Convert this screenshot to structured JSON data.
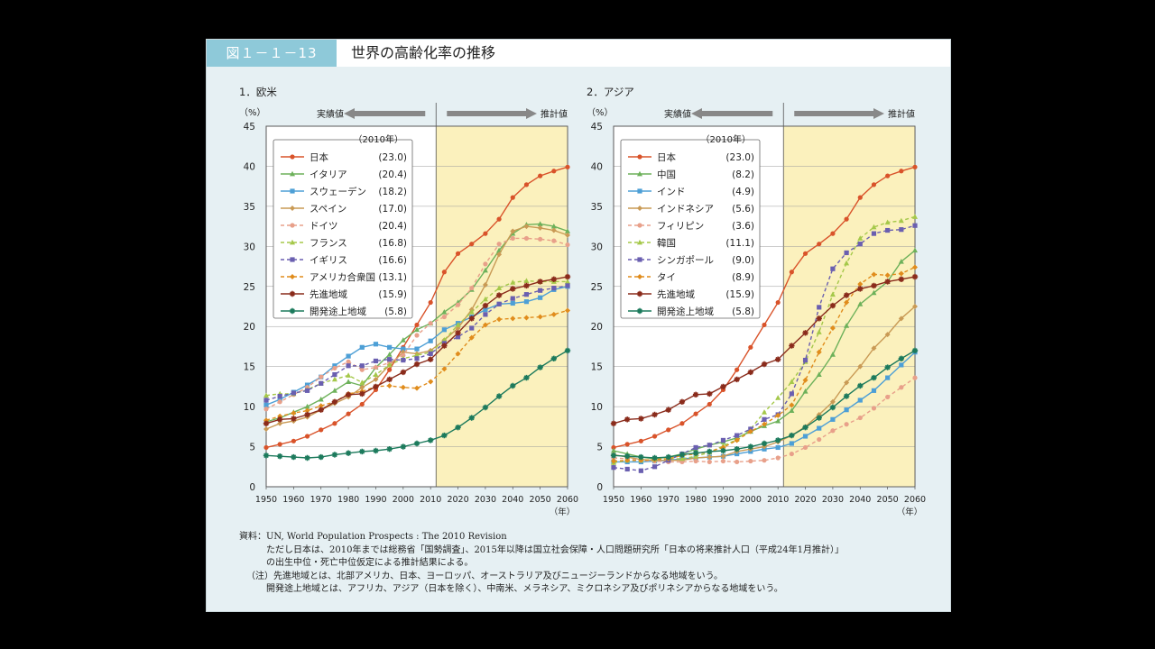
{
  "figure": {
    "label": "図１－１－13",
    "title": "世界の高齢化率の推移"
  },
  "chart_data": [
    {
      "type": "line",
      "panel_title": "1．欧米",
      "ylabel": "（%）",
      "xlabel": "（年）",
      "ylim": [
        0,
        45
      ],
      "yticks": [
        0,
        5,
        10,
        15,
        20,
        25,
        30,
        35,
        40,
        45
      ],
      "xticks": [
        1950,
        1960,
        1970,
        1980,
        1990,
        2000,
        2010,
        2020,
        2030,
        2040,
        2050,
        2060
      ],
      "actual_label": "実績値",
      "projection_label": "推計値",
      "legend_header": "（2010年）",
      "x": [
        1950,
        1955,
        1960,
        1965,
        1970,
        1975,
        1980,
        1985,
        1990,
        1995,
        2000,
        2005,
        2010,
        2015,
        2020,
        2025,
        2030,
        2035,
        2040,
        2045,
        2050,
        2055,
        2060
      ],
      "series": [
        {
          "name": "日本",
          "value_2010": "(23.0)",
          "color": "#d9532a",
          "dash": "",
          "marker": "circle",
          "values": [
            4.9,
            5.3,
            5.7,
            6.3,
            7.1,
            7.9,
            9.1,
            10.3,
            12.1,
            14.6,
            17.4,
            20.2,
            23.0,
            26.8,
            29.1,
            30.3,
            31.6,
            33.4,
            36.1,
            37.7,
            38.8,
            39.4,
            39.9
          ]
        },
        {
          "name": "イタリア",
          "value_2010": "(20.4)",
          "color": "#6db15a",
          "dash": "",
          "marker": "triangle",
          "values": [
            8.1,
            8.6,
            9.3,
            10.0,
            10.9,
            12.0,
            13.1,
            12.6,
            14.9,
            16.5,
            18.3,
            19.6,
            20.4,
            21.8,
            23.0,
            24.6,
            27.0,
            29.5,
            31.6,
            32.7,
            32.8,
            32.5,
            31.9
          ]
        },
        {
          "name": "スウェーデン",
          "value_2010": "(18.2)",
          "color": "#4d9fd6",
          "dash": "",
          "marker": "square",
          "values": [
            10.2,
            10.9,
            11.8,
            12.7,
            13.7,
            15.1,
            16.3,
            17.4,
            17.8,
            17.4,
            17.2,
            17.2,
            18.2,
            19.6,
            20.4,
            21.2,
            22.1,
            22.8,
            22.9,
            23.1,
            23.6,
            24.6,
            25.0
          ]
        },
        {
          "name": "スペイン",
          "value_2010": "(17.0)",
          "color": "#c99a55",
          "dash": "",
          "marker": "diamond",
          "values": [
            7.2,
            7.9,
            8.2,
            8.7,
            9.6,
            10.4,
            11.2,
            12.4,
            13.4,
            15.2,
            16.8,
            16.6,
            17.0,
            18.3,
            19.8,
            22.1,
            25.2,
            29.0,
            31.9,
            32.5,
            32.3,
            32.0,
            31.4
          ]
        },
        {
          "name": "ドイツ",
          "value_2010": "(20.4)",
          "color": "#e8a08a",
          "dash": "4,3",
          "marker": "circle",
          "values": [
            9.7,
            10.6,
            11.5,
            12.4,
            13.7,
            14.8,
            15.6,
            14.6,
            14.9,
            15.5,
            16.4,
            18.9,
            20.4,
            21.2,
            22.7,
            24.8,
            27.8,
            30.3,
            31.0,
            31.0,
            30.9,
            30.7,
            30.2
          ]
        },
        {
          "name": "フランス",
          "value_2010": "(16.8)",
          "color": "#a5c84a",
          "dash": "4,3",
          "marker": "triangle",
          "values": [
            11.4,
            11.6,
            11.6,
            12.1,
            12.9,
            13.4,
            13.9,
            13.0,
            14.0,
            15.2,
            16.0,
            16.4,
            16.8,
            18.3,
            20.2,
            21.8,
            23.4,
            24.8,
            25.5,
            25.7,
            25.6,
            25.6,
            25.6
          ]
        },
        {
          "name": "イギリス",
          "value_2010": "(16.6)",
          "color": "#6a5fb0",
          "dash": "4,3",
          "marker": "square",
          "values": [
            10.8,
            11.3,
            11.7,
            12.0,
            12.9,
            14.0,
            15.1,
            15.1,
            15.7,
            15.9,
            15.8,
            16.0,
            16.6,
            17.9,
            18.7,
            19.8,
            21.5,
            22.8,
            23.5,
            24.0,
            24.5,
            24.8,
            25.1
          ]
        },
        {
          "name": "アメリカ合衆国",
          "value_2010": "(13.1)",
          "color": "#e08c1c",
          "dash": "4,3",
          "marker": "diamond",
          "values": [
            8.3,
            8.8,
            9.2,
            9.5,
            10.1,
            10.6,
            11.6,
            11.9,
            12.5,
            12.6,
            12.4,
            12.3,
            13.1,
            14.7,
            16.6,
            18.6,
            20.2,
            20.9,
            21.0,
            21.1,
            21.2,
            21.5,
            22.0
          ]
        },
        {
          "name": "先進地域",
          "value_2010": "(15.9)",
          "color": "#8a2b1b",
          "dash": "",
          "marker": "star",
          "values": [
            7.9,
            8.4,
            8.5,
            9.0,
            9.6,
            10.6,
            11.5,
            11.6,
            12.5,
            13.4,
            14.3,
            15.3,
            15.9,
            17.6,
            19.2,
            21.0,
            22.6,
            23.9,
            24.7,
            25.1,
            25.6,
            25.9,
            26.2
          ]
        },
        {
          "name": "開発途上地域",
          "value_2010": "(5.8)",
          "color": "#1c7a5c",
          "dash": "",
          "marker": "star",
          "values": [
            3.9,
            3.8,
            3.7,
            3.6,
            3.7,
            4.0,
            4.2,
            4.4,
            4.5,
            4.7,
            5.0,
            5.4,
            5.8,
            6.4,
            7.4,
            8.6,
            9.9,
            11.3,
            12.6,
            13.6,
            14.9,
            16.0,
            17.0
          ]
        }
      ]
    },
    {
      "type": "line",
      "panel_title": "2．アジア",
      "ylabel": "（%）",
      "xlabel": "（年）",
      "ylim": [
        0,
        45
      ],
      "yticks": [
        0,
        5,
        10,
        15,
        20,
        25,
        30,
        35,
        40,
        45
      ],
      "xticks": [
        1950,
        1960,
        1970,
        1980,
        1990,
        2000,
        2010,
        2020,
        2030,
        2040,
        2050,
        2060
      ],
      "actual_label": "実績値",
      "projection_label": "推計値",
      "legend_header": "（2010年）",
      "x": [
        1950,
        1955,
        1960,
        1965,
        1970,
        1975,
        1980,
        1985,
        1990,
        1995,
        2000,
        2005,
        2010,
        2015,
        2020,
        2025,
        2030,
        2035,
        2040,
        2045,
        2050,
        2055,
        2060
      ],
      "series": [
        {
          "name": "日本",
          "value_2010": "(23.0)",
          "color": "#d9532a",
          "dash": "",
          "marker": "circle",
          "values": [
            4.9,
            5.3,
            5.7,
            6.3,
            7.1,
            7.9,
            9.1,
            10.3,
            12.1,
            14.6,
            17.4,
            20.2,
            23.0,
            26.8,
            29.1,
            30.3,
            31.6,
            33.4,
            36.1,
            37.7,
            38.8,
            39.4,
            39.9
          ]
        },
        {
          "name": "中国",
          "value_2010": "(8.2)",
          "color": "#6db15a",
          "dash": "",
          "marker": "triangle",
          "values": [
            4.5,
            4.1,
            3.7,
            3.5,
            3.7,
            4.1,
            4.7,
            5.2,
            5.6,
            6.1,
            6.9,
            7.6,
            8.2,
            9.5,
            11.9,
            14.0,
            16.5,
            20.1,
            22.8,
            24.2,
            25.6,
            28.1,
            29.5
          ]
        },
        {
          "name": "インド",
          "value_2010": "(4.9)",
          "color": "#4d9fd6",
          "dash": "",
          "marker": "square",
          "values": [
            3.1,
            3.1,
            3.1,
            3.2,
            3.3,
            3.5,
            3.6,
            3.7,
            3.8,
            4.1,
            4.4,
            4.7,
            4.9,
            5.4,
            6.3,
            7.3,
            8.4,
            9.6,
            10.8,
            12.0,
            13.6,
            15.2,
            16.8
          ]
        },
        {
          "name": "インドネシア",
          "value_2010": "(5.6)",
          "color": "#c99a55",
          "dash": "",
          "marker": "diamond",
          "values": [
            4.0,
            3.7,
            3.4,
            3.3,
            3.3,
            3.3,
            3.6,
            3.7,
            3.8,
            4.4,
            4.7,
            5.0,
            5.6,
            6.4,
            7.5,
            9.0,
            10.6,
            13.0,
            15.0,
            17.3,
            19.0,
            21.0,
            22.5
          ]
        },
        {
          "name": "フィリピン",
          "value_2010": "(3.6)",
          "color": "#e8a08a",
          "dash": "4,3",
          "marker": "circle",
          "values": [
            3.6,
            3.5,
            3.3,
            3.2,
            3.1,
            3.1,
            3.2,
            3.1,
            3.2,
            3.1,
            3.2,
            3.3,
            3.6,
            4.1,
            4.9,
            5.9,
            7.0,
            7.8,
            8.6,
            9.8,
            11.2,
            12.4,
            13.6
          ]
        },
        {
          "name": "韓国",
          "value_2010": "(11.1)",
          "color": "#a5c84a",
          "dash": "4,3",
          "marker": "triangle",
          "values": [
            3.0,
            3.3,
            3.3,
            3.4,
            3.5,
            3.5,
            3.8,
            4.3,
            5.1,
            5.9,
            7.2,
            9.3,
            11.1,
            13.1,
            15.6,
            19.3,
            24.0,
            27.9,
            31.0,
            32.4,
            33.0,
            33.2,
            33.7
          ]
        },
        {
          "name": "シンガポール",
          "value_2010": "(9.0)",
          "color": "#6a5fb0",
          "dash": "4,3",
          "marker": "square",
          "values": [
            2.4,
            2.2,
            2.0,
            2.5,
            3.3,
            4.1,
            4.9,
            5.2,
            5.8,
            6.4,
            7.2,
            8.4,
            9.0,
            11.6,
            15.8,
            22.4,
            27.2,
            29.2,
            30.3,
            31.6,
            32.0,
            32.1,
            32.6
          ]
        },
        {
          "name": "タイ",
          "value_2010": "(8.9)",
          "color": "#e08c1c",
          "dash": "4,3",
          "marker": "diamond",
          "values": [
            3.2,
            3.3,
            3.3,
            3.4,
            3.5,
            3.9,
            4.1,
            4.4,
            4.9,
            5.8,
            6.9,
            7.8,
            8.9,
            10.2,
            13.3,
            16.8,
            19.8,
            23.0,
            25.3,
            26.5,
            26.4,
            26.6,
            27.4
          ]
        },
        {
          "name": "先進地域",
          "value_2010": "(15.9)",
          "color": "#8a2b1b",
          "dash": "",
          "marker": "star",
          "values": [
            7.9,
            8.4,
            8.5,
            9.0,
            9.6,
            10.6,
            11.5,
            11.6,
            12.5,
            13.4,
            14.3,
            15.3,
            15.9,
            17.6,
            19.2,
            21.0,
            22.6,
            23.9,
            24.7,
            25.1,
            25.6,
            25.9,
            26.2
          ]
        },
        {
          "name": "開発途上地域",
          "value_2010": "(5.8)",
          "color": "#1c7a5c",
          "dash": "",
          "marker": "star",
          "values": [
            3.9,
            3.8,
            3.7,
            3.6,
            3.7,
            4.0,
            4.2,
            4.4,
            4.5,
            4.7,
            5.0,
            5.4,
            5.8,
            6.4,
            7.4,
            8.6,
            9.9,
            11.3,
            12.6,
            13.6,
            14.9,
            16.0,
            17.0
          ]
        }
      ]
    }
  ],
  "notes": [
    "資料：UN, World Population Prospects : The 2010 Revision",
    "ただし日本は、2010年までは総務省「国勢調査」、2015年以降は国立社会保障・人口問題研究所「日本の将来推計人口（平成24年1月推計）」",
    "の出生中位・死亡中位仮定による推計結果による。",
    "（注）先進地域とは、北部アメリカ、日本、ヨーロッパ、オーストラリア及びニュージーランドからなる地域をいう。",
    "開発途上地域とは、アフリカ、アジア（日本を除く）、中南米、メラネシア、ミクロネシア及びポリネシアからなる地域をいう。"
  ]
}
